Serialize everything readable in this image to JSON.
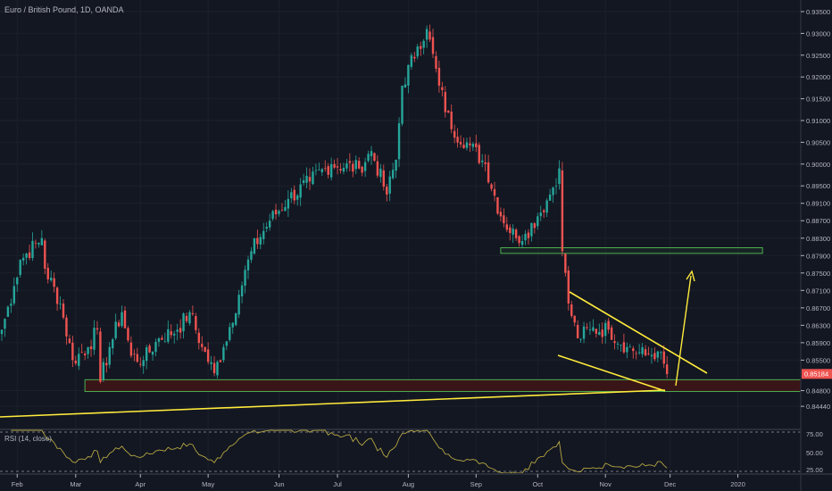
{
  "header": {
    "title": "Euro / British Pound, 1D, OANDA"
  },
  "rsi": {
    "label": "RSI (14, close)",
    "levels": [
      "75.00",
      "50.00",
      "25.00"
    ]
  },
  "last_price_label": "0.85184",
  "colors": {
    "background": "#131722",
    "up": "#26a69a",
    "down": "#ef5350",
    "drawing": "#ffeb3b",
    "zone": "#4caf50",
    "zone_fill": "#3a1517",
    "rsi_line": "#b5a642"
  },
  "chart_data": {
    "type": "candlestick",
    "title": "Euro / British Pound, 1D, OANDA",
    "ylim": [
      0.8444,
      0.935
    ],
    "y_ticks": [
      "0.93500",
      "0.93000",
      "0.92500",
      "0.92000",
      "0.91500",
      "0.91000",
      "0.90500",
      "0.90000",
      "0.89500",
      "0.89100",
      "0.88700",
      "0.88300",
      "0.87900",
      "0.87500",
      "0.87100",
      "0.86700",
      "0.86300",
      "0.85900",
      "0.85500",
      "0.84800",
      "0.84440"
    ],
    "y_tick_values": [
      0.935,
      0.93,
      0.925,
      0.92,
      0.915,
      0.91,
      0.905,
      0.9,
      0.895,
      0.891,
      0.887,
      0.883,
      0.879,
      0.875,
      0.871,
      0.867,
      0.863,
      0.859,
      0.855,
      0.848,
      0.8444
    ],
    "x_ticks": [
      {
        "label": "Feb",
        "day": 5
      },
      {
        "label": "Mar",
        "day": 24
      },
      {
        "label": "Apr",
        "day": 45
      },
      {
        "label": "May",
        "day": 67
      },
      {
        "label": "Jun",
        "day": 90
      },
      {
        "label": "Jul",
        "day": 109
      },
      {
        "label": "Aug",
        "day": 132
      },
      {
        "label": "Sep",
        "day": 154
      },
      {
        "label": "Oct",
        "day": 174
      },
      {
        "label": "Nov",
        "day": 196
      },
      {
        "label": "Dec",
        "day": 217
      },
      {
        "label": "2020",
        "day": 239
      }
    ],
    "close_anchors_by_trading_day": [
      [
        0,
        0.862
      ],
      [
        4,
        0.872
      ],
      [
        6,
        0.878
      ],
      [
        13,
        0.883
      ],
      [
        14,
        0.876
      ],
      [
        19,
        0.868
      ],
      [
        23,
        0.855
      ],
      [
        28,
        0.858
      ],
      [
        31,
        0.862
      ],
      [
        32,
        0.85
      ],
      [
        35,
        0.858
      ],
      [
        39,
        0.866
      ],
      [
        42,
        0.856
      ],
      [
        46,
        0.855
      ],
      [
        51,
        0.86
      ],
      [
        57,
        0.862
      ],
      [
        61,
        0.866
      ],
      [
        65,
        0.858
      ],
      [
        69,
        0.852
      ],
      [
        72,
        0.858
      ],
      [
        77,
        0.87
      ],
      [
        81,
        0.88
      ],
      [
        87,
        0.887
      ],
      [
        93,
        0.892
      ],
      [
        100,
        0.896
      ],
      [
        107,
        0.9
      ],
      [
        116,
        0.899
      ],
      [
        120,
        0.903
      ],
      [
        125,
        0.893
      ],
      [
        128,
        0.901
      ],
      [
        130,
        0.918
      ],
      [
        135,
        0.927
      ],
      [
        138,
        0.931
      ],
      [
        142,
        0.918
      ],
      [
        146,
        0.908
      ],
      [
        151,
        0.905
      ],
      [
        157,
        0.9
      ],
      [
        162,
        0.888
      ],
      [
        167,
        0.883
      ],
      [
        170,
        0.884
      ],
      [
        174,
        0.888
      ],
      [
        178,
        0.893
      ],
      [
        181,
        0.899
      ],
      [
        182,
        0.88
      ],
      [
        184,
        0.868
      ],
      [
        187,
        0.86
      ],
      [
        191,
        0.862
      ],
      [
        197,
        0.862
      ],
      [
        203,
        0.858
      ],
      [
        209,
        0.856
      ],
      [
        213,
        0.857
      ],
      [
        216,
        0.8518
      ]
    ],
    "last_price": 0.85184,
    "zones": [
      {
        "name": "resistance",
        "from": 0.8795,
        "to": 0.8808,
        "start_day": 162,
        "end_day": 247
      },
      {
        "name": "support",
        "from": 0.8478,
        "to": 0.8505,
        "start_day": 27,
        "end_day": 260
      }
    ],
    "indicator": {
      "name": "RSI",
      "period": 14,
      "source": "close",
      "range": [
        0,
        100
      ]
    }
  }
}
